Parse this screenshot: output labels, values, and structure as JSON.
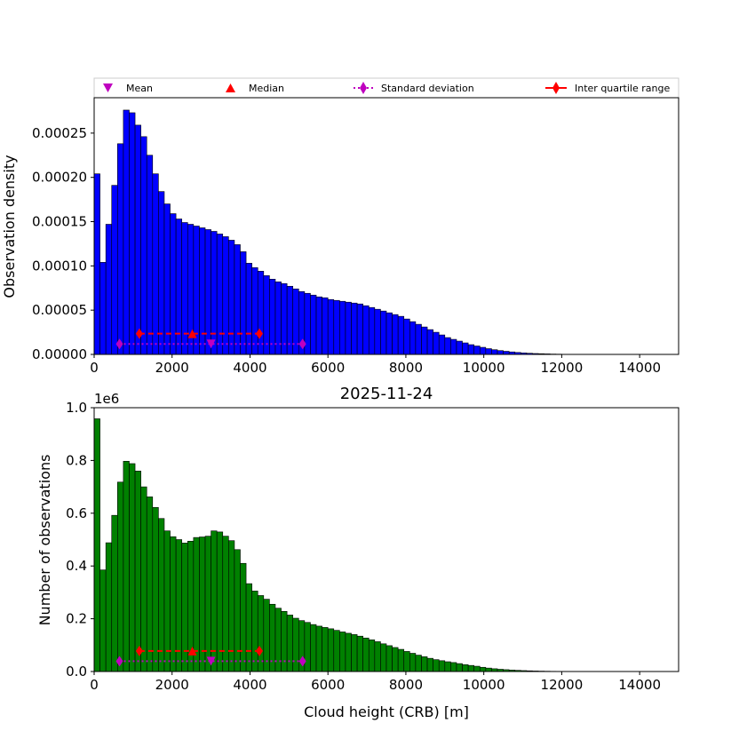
{
  "legend": {
    "placement": "top",
    "entries": [
      {
        "label": "Mean",
        "marker": "triangle-down",
        "color": "#bf00bf"
      },
      {
        "label": "Median",
        "marker": "triangle-up",
        "color": "#ff0000"
      },
      {
        "label": "Standard deviation",
        "marker": "diamond",
        "line": "dotted",
        "color": "#bf00bf"
      },
      {
        "label": "Inter quartile range",
        "marker": "diamond",
        "line": "solid",
        "color": "#ff0000"
      }
    ]
  },
  "chart_data": [
    {
      "type": "bar",
      "title": "",
      "xlabel": "",
      "ylabel": "Observation density",
      "xlim": [
        0,
        15000
      ],
      "ylim": [
        0,
        0.00029
      ],
      "xticks": [
        0,
        2000,
        4000,
        6000,
        8000,
        10000,
        12000,
        14000
      ],
      "yticks": [
        0,
        5e-05,
        0.0001,
        0.00015,
        0.0002,
        0.00025
      ],
      "ytick_labels": [
        "0.00000",
        "0.00005",
        "0.00010",
        "0.00015",
        "0.00020",
        "0.00025"
      ],
      "bar_color": "#0000ff",
      "bin_width": 150,
      "values": [
        0.000204,
        0.000104,
        0.000147,
        0.000191,
        0.000238,
        0.000276,
        0.000273,
        0.000259,
        0.000246,
        0.000225,
        0.000204,
        0.000184,
        0.00017,
        0.000159,
        0.000153,
        0.000149,
        0.000147,
        0.000145,
        0.000143,
        0.000141,
        0.000139,
        0.000136,
        0.000133,
        0.000129,
        0.000124,
        0.000116,
        0.000103,
        9.8e-05,
        9.4e-05,
        8.9e-05,
        8.5e-05,
        8.2e-05,
        8e-05,
        7.7e-05,
        7.4e-05,
        7.1e-05,
        6.9e-05,
        6.7e-05,
        6.5e-05,
        6.4e-05,
        6.2e-05,
        6.1e-05,
        6e-05,
        5.9e-05,
        5.8e-05,
        5.7e-05,
        5.5e-05,
        5.3e-05,
        5.1e-05,
        4.9e-05,
        4.7e-05,
        4.5e-05,
        4.3e-05,
        4e-05,
        3.7e-05,
        3.4e-05,
        3.1e-05,
        2.8e-05,
        2.5e-05,
        2.2e-05,
        1.9e-05,
        1.7e-05,
        1.5e-05,
        1.3e-05,
        1.1e-05,
        9.5e-06,
        8e-06,
        6.5e-06,
        5.3e-06,
        4.3e-06,
        3.5e-06,
        2.8e-06,
        2.2e-06,
        1.7e-06,
        1.3e-06,
        1e-06,
        8e-07,
        6e-07,
        4e-07,
        3e-07,
        2e-07,
        1e-07,
        1e-07,
        5e-08,
        3e-08
      ],
      "stats": {
        "marker_y": 2.35e-05,
        "std_marker_y": 1.18e-05,
        "mean": 3000,
        "median": 2520,
        "iqr": [
          1160,
          4240
        ],
        "std_range": [
          650,
          5350
        ]
      }
    },
    {
      "type": "bar",
      "title": "2025-11-24",
      "xlabel": "Cloud height (CRB) [m]",
      "ylabel": "Number of observations",
      "y_offset_label": "1e6",
      "xlim": [
        0,
        15000
      ],
      "ylim": [
        0,
        1000000
      ],
      "xticks": [
        0,
        2000,
        4000,
        6000,
        8000,
        10000,
        12000,
        14000
      ],
      "yticks": [
        0,
        200000,
        400000,
        600000,
        800000,
        1000000
      ],
      "ytick_labels": [
        "0.0",
        "0.2",
        "0.4",
        "0.6",
        "0.8",
        "1.0"
      ],
      "bar_color": "#008000",
      "bin_width": 150,
      "values": [
        958000,
        385000,
        488000,
        592000,
        718000,
        797000,
        788000,
        760000,
        700000,
        662000,
        622000,
        580000,
        533000,
        511000,
        500000,
        487000,
        494000,
        508000,
        510000,
        513000,
        533000,
        529000,
        513000,
        496000,
        462000,
        410000,
        333000,
        305000,
        288000,
        274000,
        255000,
        240000,
        228000,
        214000,
        202000,
        193000,
        186000,
        178000,
        172000,
        167000,
        162000,
        156000,
        150000,
        145000,
        140000,
        134000,
        127000,
        120000,
        113000,
        105000,
        98000,
        91000,
        84000,
        76000,
        69000,
        62000,
        56000,
        50000,
        45000,
        41000,
        37000,
        34000,
        30000,
        26000,
        23000,
        20000,
        16000,
        13000,
        10500,
        8500,
        7000,
        5500,
        4500,
        3500,
        2700,
        2000,
        1500,
        1100,
        800,
        600,
        400,
        300,
        200,
        100,
        50
      ],
      "stats": {
        "marker_y": 78000,
        "std_marker_y": 39000,
        "mean": 3000,
        "median": 2520,
        "iqr": [
          1160,
          4240
        ],
        "std_range": [
          650,
          5350
        ]
      }
    }
  ]
}
